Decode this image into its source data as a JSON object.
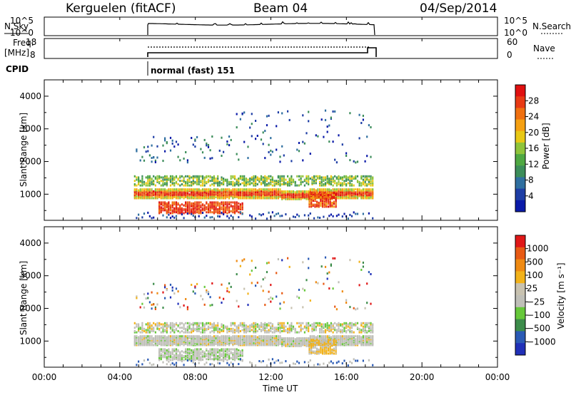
{
  "header": {
    "station": "Kerguelen (fitACF)",
    "beam": "Beam 04",
    "date": "04/Sep/2014"
  },
  "top_panels": {
    "nsky_label": "N.Sky",
    "nsky_ticks": [
      "10^5",
      "10^0"
    ],
    "nsearch_label": "N.Search",
    "nsearch_ticks": [
      "10^5",
      "10^0"
    ],
    "freq_label_line1": "Freq.",
    "freq_label_line2": "[MHz]",
    "freq_ticks": [
      "18",
      "8"
    ],
    "nave_label": "Nave",
    "nave_ticks": [
      "60",
      "0"
    ],
    "cpid_label": "CPID",
    "cpid_value": "normal (fast) 151"
  },
  "colorbars": {
    "power_title": "Power [dB]",
    "power_ticks": [
      "28",
      "24",
      "20",
      "16",
      "12",
      "8",
      "4"
    ],
    "velocity_title": "Velocity [m s⁻¹]",
    "velocity_ticks": [
      "1000",
      "500",
      "100",
      "25",
      "−25",
      "−100",
      "−500",
      "−1000"
    ]
  },
  "chart_data": [
    {
      "type": "heatmap",
      "panel": "power",
      "ylabel": "Slant Range [km]",
      "xlabel": "",
      "y_ticks": [
        "4000",
        "3000",
        "2000",
        "1000"
      ],
      "ylim": [
        200,
        4500
      ],
      "xlim": [
        "00:00",
        "24:00"
      ],
      "colorscale": [
        "#0a1aa8",
        "#1e3ea5",
        "#2f6fa0",
        "#3c8d5a",
        "#4fa842",
        "#8fc43a",
        "#e8c815",
        "#f5a012",
        "#f07010",
        "#e83a14",
        "#e01010"
      ],
      "data_window_hours": [
        4.75,
        17.4
      ],
      "main_band_km": [
        850,
        1250
      ],
      "secondary_band_km": [
        1300,
        1600
      ],
      "high_range_km": [
        2000,
        3600
      ]
    },
    {
      "type": "heatmap",
      "panel": "velocity",
      "ylabel": "Slant Range [km]",
      "xlabel": "Time UT",
      "y_ticks": [
        "4000",
        "3000",
        "2000",
        "1000"
      ],
      "x_ticks": [
        "00:00",
        "04:00",
        "08:00",
        "12:00",
        "16:00",
        "20:00",
        "00:00"
      ],
      "ylim": [
        200,
        4500
      ],
      "xlim": [
        "00:00",
        "24:00"
      ],
      "colorscale": [
        "#2030b8",
        "#2a5ab5",
        "#3c8c4a",
        "#66c83a",
        "#bfbfb8",
        "#c8c2b0",
        "#f2b21a",
        "#ef8a12",
        "#e85a14",
        "#e01818"
      ],
      "dominant_color": "ground scatter (gray)"
    }
  ]
}
